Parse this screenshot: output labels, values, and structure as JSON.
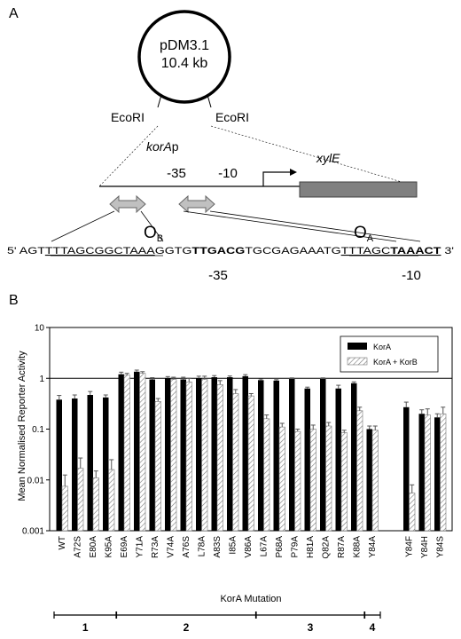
{
  "panel_a": {
    "label": "A",
    "plasmid_name": "pDM3.1",
    "plasmid_size": "10.4 kb",
    "ecori_left": "EcoRI",
    "ecori_right": "EcoRI",
    "promoter": "korA",
    "promoter_suffix": "p",
    "gene": "xylE",
    "minus35": "-35",
    "minus10": "-10",
    "ob_letter": "O",
    "ob_sub": "B",
    "oa_letter": "O",
    "oa_sub": "A",
    "seq_prefix": "5' AGT",
    "seq_ob": "TTTAGCGGCTAAA",
    "seq_mid1": "GGTG",
    "seq_box35": "TTGACG",
    "seq_mid2": "TGCGAGAAATG",
    "seq_oa": "TTTAGC",
    "seq_box10": "TAAACT",
    "seq_suffix": " 3'",
    "seq_label35": "-35",
    "seq_label10": "-10"
  },
  "panel_b": {
    "label": "B",
    "group_labels": [
      "1",
      "2",
      "3",
      "4"
    ]
  },
  "colors": {
    "kora": "#000000",
    "kora_korb_stroke": "#777777",
    "gene_box": "#808080",
    "arrow_fill": "#c0c0c0"
  },
  "chart_data": {
    "type": "bar",
    "ylabel": "Mean Normalised Reporter Activity",
    "xlabel": "KorA Mutation",
    "yscale": "log",
    "ylim": [
      0.001,
      10
    ],
    "yticks": [
      "0.001",
      "0.01",
      "0.1",
      "1",
      "10"
    ],
    "reference_line": 1,
    "legend_position": "top-right",
    "categories": [
      "WT",
      "A72S",
      "E80A",
      "K95A",
      "E69A",
      "Y71A",
      "R73A",
      "V74A",
      "A76S",
      "L78A",
      "A83S",
      "I85A",
      "V86A",
      "L67A",
      "P68A",
      "P79A",
      "H81A",
      "Q82A",
      "R87A",
      "K88A",
      "Y84A",
      "Y84F",
      "Y84H",
      "Y84S"
    ],
    "series": [
      {
        "name": "KorA",
        "values": [
          0.38,
          0.4,
          0.47,
          0.42,
          1.2,
          1.35,
          0.95,
          1.0,
          0.95,
          1.0,
          1.05,
          1.05,
          1.1,
          0.92,
          0.9,
          0.97,
          0.63,
          0.97,
          0.63,
          0.8,
          0.1,
          0.27,
          0.2,
          0.17
        ],
        "errors": [
          0.08,
          0.07,
          0.08,
          0.05,
          0.12,
          0.1,
          0.08,
          0.08,
          0.1,
          0.1,
          0.08,
          0.06,
          0.08,
          0.05,
          0.04,
          0.05,
          0.04,
          0.05,
          0.1,
          0.05,
          0.015,
          0.07,
          0.04,
          0.03
        ]
      },
      {
        "name": "KorA + KorB",
        "values": [
          0.0075,
          0.017,
          0.011,
          0.016,
          1.15,
          1.25,
          0.35,
          0.95,
          0.85,
          0.95,
          0.75,
          0.5,
          0.45,
          0.16,
          0.11,
          0.09,
          0.1,
          0.115,
          0.085,
          0.23,
          0.095,
          0.0055,
          0.19,
          0.2
        ]
      }
    ],
    "kora_korb_errors": [
      0.005,
      0.01,
      0.004,
      0.009,
      0.1,
      0.1,
      0.05,
      0.1,
      0.15,
      0.15,
      0.15,
      0.1,
      0.05,
      0.03,
      0.02,
      0.01,
      0.02,
      0.02,
      0.01,
      0.04,
      0.02,
      0.0025,
      0.06,
      0.07
    ],
    "groups": [
      {
        "label": "1",
        "start": 0,
        "end": 3
      },
      {
        "label": "2",
        "start": 4,
        "end": 12
      },
      {
        "label": "3",
        "start": 13,
        "end": 19
      },
      {
        "label": "4",
        "start": 20,
        "end": 20
      }
    ]
  }
}
